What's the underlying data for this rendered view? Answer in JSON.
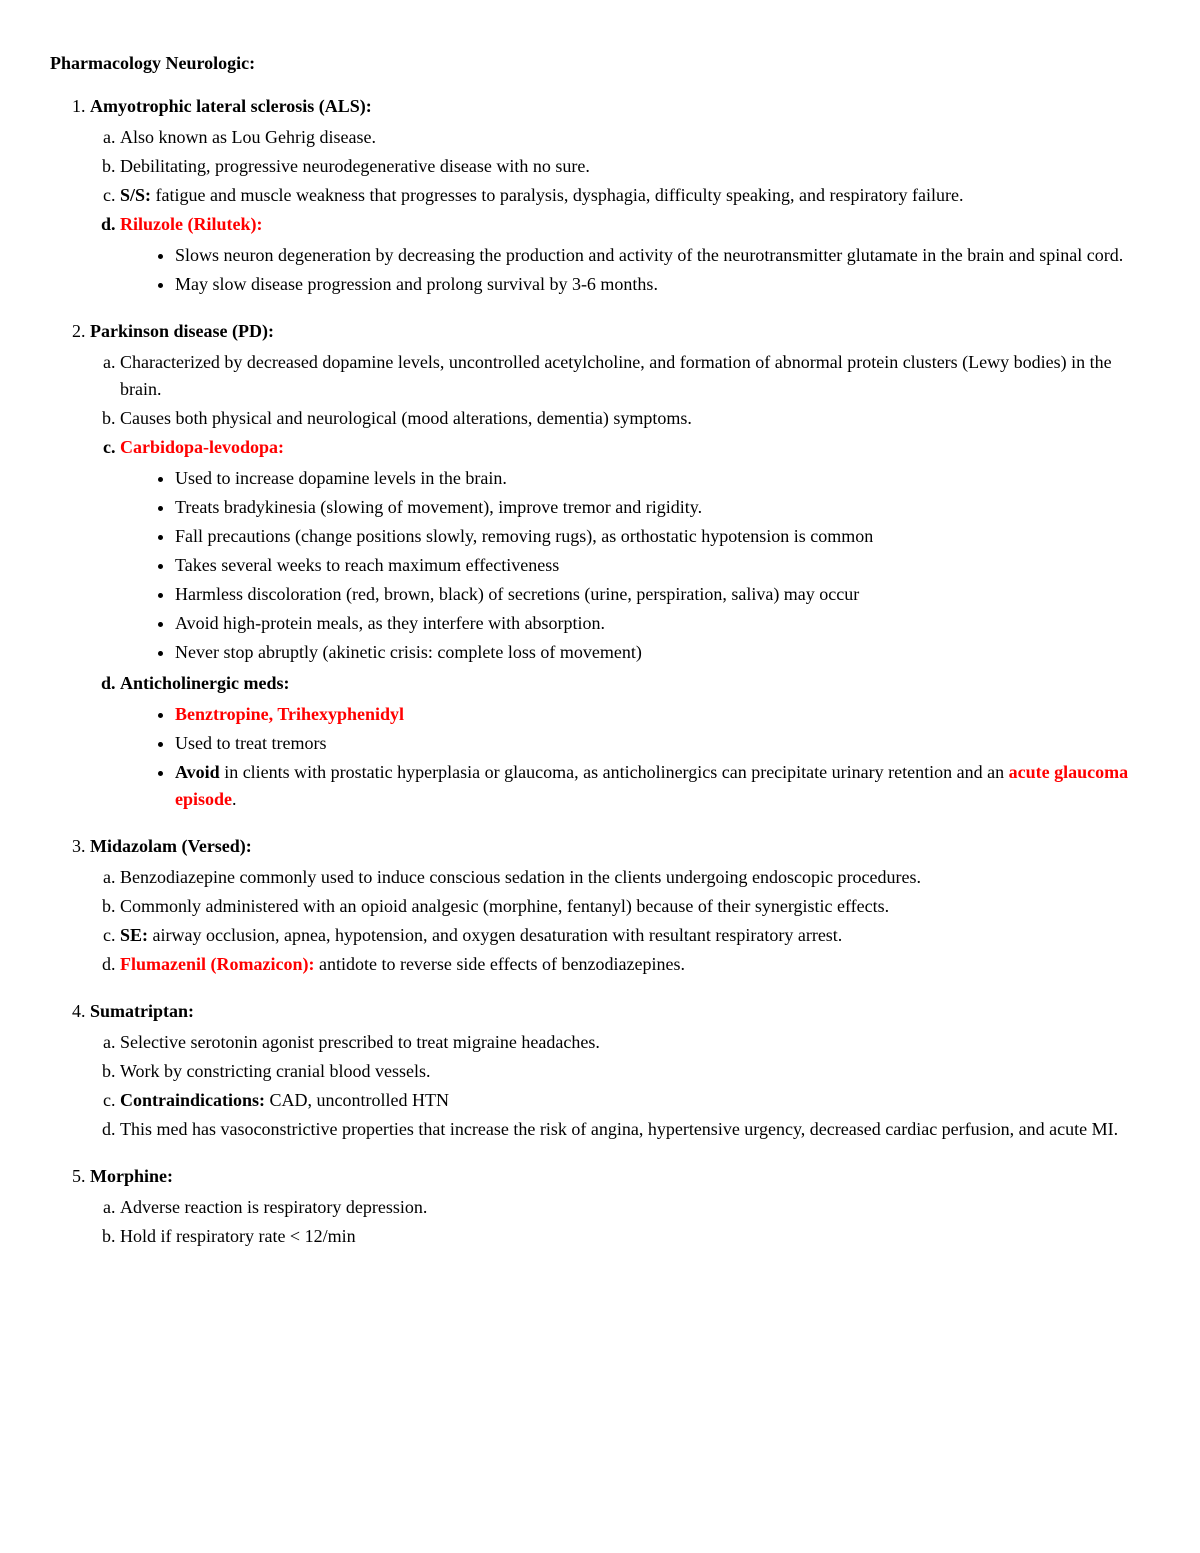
{
  "title": "Pharmacology Neurologic:",
  "sections": [
    {
      "heading": "Amyotrophic lateral sclerosis (ALS):",
      "a": "Also known as Lou Gehrig disease.",
      "b": "Debilitating, progressive neurodegenerative disease with no sure.",
      "c_ss": "S/S: ",
      "c": "fatigue and muscle weakness that progresses to paralysis, dysphagia, difficulty speaking, and respiratory failure.",
      "d": "Riluzole (Rilutek):",
      "d_bul1": "Slows neuron degeneration by decreasing the production and activity of the neurotransmitter glutamate in the brain and spinal cord.",
      "d_bul2": "May slow disease progression and prolong survival by 3-6 months."
    },
    {
      "heading": "Parkinson disease (PD):",
      "a": "Characterized by decreased dopamine levels, uncontrolled acetylcholine, and formation of abnormal protein clusters (Lewy bodies) in the brain.",
      "b": "Causes both physical and neurological (mood alterations, dementia) symptoms.",
      "c": "Carbidopa-levodopa:",
      "c_bul1": "Used to increase dopamine levels in the brain.",
      "c_bul2": "Treats bradykinesia (slowing of movement), improve tremor and rigidity.",
      "c_bul3": "Fall precautions (change positions slowly, removing rugs), as orthostatic hypotension is common",
      "c_bul4": "Takes several weeks to reach maximum effectiveness",
      "c_bul5": "Harmless discoloration (red, brown, black) of secretions (urine, perspiration, saliva) may occur",
      "c_bul6": "Avoid high-protein meals, as they interfere with absorption.",
      "c_bul7": "Never stop abruptly (akinetic crisis: complete loss of movement)",
      "d": "Anticholinergic meds:",
      "d_bul1": "Benztropine, Trihexyphenidyl",
      "d_bul2": "Used to treat tremors",
      "d_bul3_avoid": "Avoid",
      "d_bul3_mid": " in clients with prostatic hyperplasia or glaucoma, as anticholinergics can precipitate urinary retention and an ",
      "d_bul3_red": "acute glaucoma episode",
      "d_bul3_end": "."
    },
    {
      "heading": "Midazolam (Versed):",
      "a": "Benzodiazepine commonly used to induce conscious sedation in the clients undergoing endoscopic procedures.",
      "b": "Commonly administered with an opioid analgesic (morphine, fentanyl) because of their synergistic effects.",
      "c_se": "SE: ",
      "c": "airway occlusion, apnea, hypotension, and oxygen desaturation with resultant respiratory arrest.",
      "d_red": "Flumazenil (Romazicon): ",
      "d": "antidote to reverse side effects of benzodiazepines."
    },
    {
      "heading": "Sumatriptan:",
      "a": "Selective serotonin agonist prescribed to treat migraine headaches.",
      "b": "Work by constricting cranial blood vessels.",
      "c_ci": "Contraindications: ",
      "c": "CAD, uncontrolled HTN",
      "d": "This med has vasoconstrictive properties that increase the risk of angina, hypertensive urgency, decreased cardiac perfusion, and acute MI."
    },
    {
      "heading": "Morphine:",
      "a": "Adverse reaction is respiratory depression.",
      "b": "Hold if respiratory rate < 12/min"
    }
  ]
}
